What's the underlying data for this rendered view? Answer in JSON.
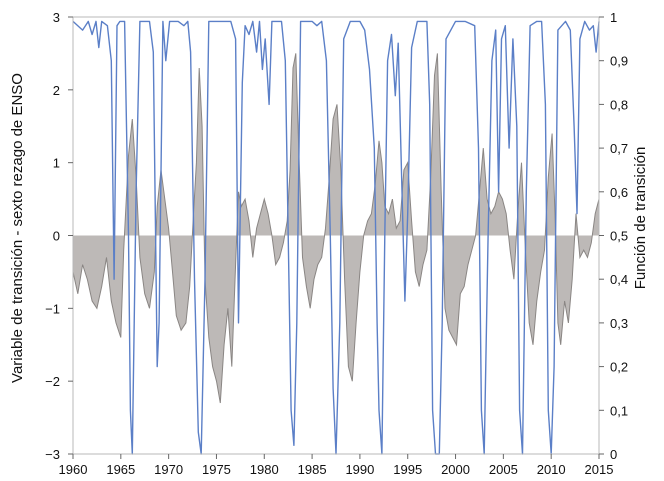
{
  "chart_data": {
    "type": "area",
    "title": "",
    "xlabel": "",
    "ylabel_left": "Variable de transición - sexto rezago de ENSO",
    "ylabel_right": "Función de transición",
    "xlim": [
      1960,
      2015
    ],
    "ylim_left": [
      -3,
      3
    ],
    "ylim_right": [
      0,
      1
    ],
    "grid": false,
    "legend": "none",
    "x_ticks": [
      "1960",
      "1965",
      "1970",
      "1975",
      "1980",
      "1985",
      "1990",
      "1995",
      "2000",
      "2005",
      "2010",
      "2015"
    ],
    "y_left_ticks": [
      "3",
      "2",
      "1",
      "0",
      "−1",
      "−2",
      "−3"
    ],
    "y_right_ticks": [
      "1",
      "0,9",
      "0,8",
      "0,7",
      "0,6",
      "0,5",
      "0,4",
      "0,3",
      "0,2",
      "0,1",
      "0"
    ],
    "series": [
      {
        "axis": "left",
        "style": "filled-area",
        "color": "#bdb9b7",
        "line_color": "#8a8684",
        "points": [
          [
            1960.0,
            -0.5
          ],
          [
            1960.5,
            -0.8
          ],
          [
            1961.0,
            -0.4
          ],
          [
            1961.5,
            -0.6
          ],
          [
            1962.0,
            -0.9
          ],
          [
            1962.5,
            -1.0
          ],
          [
            1963.0,
            -0.7
          ],
          [
            1963.5,
            -0.3
          ],
          [
            1964.0,
            -0.9
          ],
          [
            1964.5,
            -1.2
          ],
          [
            1965.0,
            -1.4
          ],
          [
            1965.3,
            -0.2
          ],
          [
            1965.8,
            1.1
          ],
          [
            1966.2,
            1.6
          ],
          [
            1966.6,
            0.8
          ],
          [
            1967.0,
            -0.3
          ],
          [
            1967.5,
            -0.8
          ],
          [
            1968.0,
            -1.0
          ],
          [
            1968.5,
            -0.5
          ],
          [
            1968.8,
            0.4
          ],
          [
            1969.2,
            0.9
          ],
          [
            1969.6,
            0.5
          ],
          [
            1970.0,
            0.1
          ],
          [
            1970.4,
            -0.5
          ],
          [
            1970.8,
            -1.1
          ],
          [
            1971.3,
            -1.3
          ],
          [
            1971.8,
            -1.2
          ],
          [
            1972.2,
            -0.7
          ],
          [
            1972.6,
            0.3
          ],
          [
            1972.9,
            1.0
          ],
          [
            1973.2,
            2.3
          ],
          [
            1973.5,
            1.5
          ],
          [
            1973.8,
            -0.6
          ],
          [
            1974.2,
            -1.4
          ],
          [
            1974.6,
            -1.8
          ],
          [
            1975.0,
            -2.0
          ],
          [
            1975.4,
            -2.3
          ],
          [
            1975.8,
            -1.5
          ],
          [
            1976.2,
            -1.0
          ],
          [
            1976.6,
            -1.8
          ],
          [
            1977.0,
            -0.4
          ],
          [
            1977.3,
            0.6
          ],
          [
            1977.6,
            0.4
          ],
          [
            1978.0,
            0.5
          ],
          [
            1978.4,
            0.2
          ],
          [
            1978.8,
            -0.3
          ],
          [
            1979.2,
            0.1
          ],
          [
            1979.6,
            0.3
          ],
          [
            1980.0,
            0.5
          ],
          [
            1980.4,
            0.3
          ],
          [
            1980.8,
            0.0
          ],
          [
            1981.2,
            -0.4
          ],
          [
            1981.6,
            -0.3
          ],
          [
            1982.0,
            -0.1
          ],
          [
            1982.4,
            0.2
          ],
          [
            1982.7,
            0.9
          ],
          [
            1983.0,
            2.3
          ],
          [
            1983.3,
            2.5
          ],
          [
            1983.6,
            1.2
          ],
          [
            1984.0,
            -0.3
          ],
          [
            1984.4,
            -0.7
          ],
          [
            1984.8,
            -1.0
          ],
          [
            1985.2,
            -0.6
          ],
          [
            1985.6,
            -0.4
          ],
          [
            1986.0,
            -0.3
          ],
          [
            1986.4,
            0.1
          ],
          [
            1986.8,
            0.8
          ],
          [
            1987.2,
            1.6
          ],
          [
            1987.6,
            1.8
          ],
          [
            1988.0,
            0.9
          ],
          [
            1988.4,
            -0.6
          ],
          [
            1988.8,
            -1.8
          ],
          [
            1989.2,
            -2.0
          ],
          [
            1989.6,
            -1.2
          ],
          [
            1990.0,
            -0.5
          ],
          [
            1990.4,
            0.0
          ],
          [
            1990.8,
            0.2
          ],
          [
            1991.2,
            0.3
          ],
          [
            1991.6,
            0.7
          ],
          [
            1992.0,
            1.3
          ],
          [
            1992.3,
            1.0
          ],
          [
            1992.6,
            0.4
          ],
          [
            1993.0,
            0.3
          ],
          [
            1993.4,
            0.5
          ],
          [
            1993.8,
            0.1
          ],
          [
            1994.2,
            0.2
          ],
          [
            1994.6,
            0.9
          ],
          [
            1995.0,
            1.0
          ],
          [
            1995.4,
            0.2
          ],
          [
            1995.8,
            -0.5
          ],
          [
            1996.2,
            -0.7
          ],
          [
            1996.6,
            -0.4
          ],
          [
            1997.0,
            -0.2
          ],
          [
            1997.4,
            0.8
          ],
          [
            1997.8,
            2.2
          ],
          [
            1998.1,
            2.5
          ],
          [
            1998.5,
            0.6
          ],
          [
            1998.9,
            -1.0
          ],
          [
            1999.3,
            -1.3
          ],
          [
            1999.7,
            -1.4
          ],
          [
            2000.1,
            -1.5
          ],
          [
            2000.5,
            -0.8
          ],
          [
            2000.9,
            -0.7
          ],
          [
            2001.3,
            -0.4
          ],
          [
            2001.7,
            -0.2
          ],
          [
            2002.1,
            0.0
          ],
          [
            2002.5,
            0.6
          ],
          [
            2002.9,
            1.2
          ],
          [
            2003.3,
            0.5
          ],
          [
            2003.7,
            0.3
          ],
          [
            2004.1,
            0.4
          ],
          [
            2004.5,
            0.6
          ],
          [
            2004.9,
            0.5
          ],
          [
            2005.3,
            0.3
          ],
          [
            2005.7,
            -0.2
          ],
          [
            2006.1,
            -0.6
          ],
          [
            2006.5,
            0.3
          ],
          [
            2006.9,
            1.0
          ],
          [
            2007.3,
            -0.2
          ],
          [
            2007.7,
            -1.2
          ],
          [
            2008.1,
            -1.5
          ],
          [
            2008.5,
            -0.9
          ],
          [
            2008.9,
            -0.5
          ],
          [
            2009.3,
            -0.2
          ],
          [
            2009.7,
            0.8
          ],
          [
            2010.1,
            1.4
          ],
          [
            2010.4,
            0.3
          ],
          [
            2010.7,
            -1.2
          ],
          [
            2011.0,
            -1.5
          ],
          [
            2011.4,
            -0.9
          ],
          [
            2011.8,
            -1.2
          ],
          [
            2012.2,
            -0.6
          ],
          [
            2012.6,
            0.3
          ],
          [
            2013.0,
            -0.3
          ],
          [
            2013.4,
            -0.2
          ],
          [
            2013.8,
            -0.3
          ],
          [
            2014.2,
            -0.1
          ],
          [
            2014.6,
            0.3
          ],
          [
            2015.0,
            0.5
          ]
        ]
      },
      {
        "axis": "right",
        "style": "line",
        "color": "#5b7fc7",
        "points": [
          [
            1960.0,
            0.99
          ],
          [
            1961.0,
            0.97
          ],
          [
            1961.6,
            0.99
          ],
          [
            1962.0,
            0.96
          ],
          [
            1962.4,
            0.99
          ],
          [
            1962.7,
            0.93
          ],
          [
            1963.0,
            0.99
          ],
          [
            1963.6,
            0.98
          ],
          [
            1964.0,
            0.9
          ],
          [
            1964.3,
            0.4
          ],
          [
            1964.6,
            0.98
          ],
          [
            1964.9,
            0.99
          ],
          [
            1965.4,
            0.99
          ],
          [
            1965.8,
            0.5
          ],
          [
            1966.0,
            0.1
          ],
          [
            1966.2,
            0.0
          ],
          [
            1966.6,
            0.6
          ],
          [
            1967.0,
            0.99
          ],
          [
            1968.0,
            0.99
          ],
          [
            1968.4,
            0.92
          ],
          [
            1968.8,
            0.2
          ],
          [
            1969.0,
            0.3
          ],
          [
            1969.4,
            0.99
          ],
          [
            1969.7,
            0.9
          ],
          [
            1970.1,
            0.99
          ],
          [
            1971.0,
            0.99
          ],
          [
            1971.6,
            0.98
          ],
          [
            1972.0,
            0.99
          ],
          [
            1972.3,
            0.92
          ],
          [
            1972.7,
            0.4
          ],
          [
            1973.1,
            0.05
          ],
          [
            1973.4,
            0.0
          ],
          [
            1973.8,
            0.4
          ],
          [
            1974.2,
            0.99
          ],
          [
            1975.5,
            0.99
          ],
          [
            1976.5,
            0.99
          ],
          [
            1977.0,
            0.95
          ],
          [
            1977.3,
            0.3
          ],
          [
            1977.7,
            0.85
          ],
          [
            1978.0,
            0.98
          ],
          [
            1978.4,
            0.96
          ],
          [
            1978.8,
            0.99
          ],
          [
            1979.2,
            0.92
          ],
          [
            1979.5,
            0.99
          ],
          [
            1979.8,
            0.88
          ],
          [
            1980.1,
            0.95
          ],
          [
            1980.5,
            0.8
          ],
          [
            1980.8,
            0.99
          ],
          [
            1981.2,
            0.99
          ],
          [
            1981.8,
            0.99
          ],
          [
            1982.2,
            0.9
          ],
          [
            1982.5,
            0.5
          ],
          [
            1982.8,
            0.1
          ],
          [
            1983.1,
            0.02
          ],
          [
            1983.4,
            0.3
          ],
          [
            1983.8,
            0.99
          ],
          [
            1984.5,
            0.99
          ],
          [
            1985.0,
            0.99
          ],
          [
            1985.5,
            0.98
          ],
          [
            1986.0,
            0.99
          ],
          [
            1986.5,
            0.9
          ],
          [
            1986.9,
            0.5
          ],
          [
            1987.2,
            0.15
          ],
          [
            1987.5,
            0.0
          ],
          [
            1987.9,
            0.3
          ],
          [
            1988.3,
            0.95
          ],
          [
            1989.0,
            0.99
          ],
          [
            1990.0,
            0.99
          ],
          [
            1990.5,
            0.97
          ],
          [
            1991.0,
            0.88
          ],
          [
            1991.5,
            0.7
          ],
          [
            1991.8,
            0.3
          ],
          [
            1992.0,
            0.1
          ],
          [
            1992.3,
            0.0
          ],
          [
            1992.6,
            0.5
          ],
          [
            1992.9,
            0.9
          ],
          [
            1993.3,
            0.96
          ],
          [
            1993.7,
            0.82
          ],
          [
            1994.0,
            0.94
          ],
          [
            1994.4,
            0.6
          ],
          [
            1994.7,
            0.35
          ],
          [
            1995.0,
            0.55
          ],
          [
            1995.4,
            0.93
          ],
          [
            1996.0,
            0.99
          ],
          [
            1997.0,
            0.99
          ],
          [
            1997.3,
            0.8
          ],
          [
            1997.6,
            0.1
          ],
          [
            1997.9,
            0.0
          ],
          [
            1998.3,
            0.0
          ],
          [
            1998.6,
            0.3
          ],
          [
            1999.0,
            0.95
          ],
          [
            2000.0,
            0.99
          ],
          [
            2001.0,
            0.99
          ],
          [
            2002.0,
            0.98
          ],
          [
            2002.4,
            0.7
          ],
          [
            2002.7,
            0.1
          ],
          [
            2003.0,
            0.0
          ],
          [
            2003.4,
            0.5
          ],
          [
            2003.8,
            0.9
          ],
          [
            2004.2,
            0.97
          ],
          [
            2004.5,
            0.6
          ],
          [
            2004.8,
            0.95
          ],
          [
            2005.2,
            0.98
          ],
          [
            2005.6,
            0.7
          ],
          [
            2006.0,
            0.95
          ],
          [
            2006.4,
            0.75
          ],
          [
            2006.7,
            0.1
          ],
          [
            2007.0,
            0.0
          ],
          [
            2007.4,
            0.6
          ],
          [
            2007.8,
            0.98
          ],
          [
            2008.5,
            0.99
          ],
          [
            2009.0,
            0.99
          ],
          [
            2009.4,
            0.8
          ],
          [
            2009.7,
            0.1
          ],
          [
            2010.0,
            0.0
          ],
          [
            2010.3,
            0.2
          ],
          [
            2010.7,
            0.97
          ],
          [
            2011.5,
            0.99
          ],
          [
            2012.0,
            0.97
          ],
          [
            2012.4,
            0.75
          ],
          [
            2012.7,
            0.55
          ],
          [
            2013.0,
            0.95
          ],
          [
            2013.5,
            0.99
          ],
          [
            2014.0,
            0.97
          ],
          [
            2014.4,
            0.98
          ],
          [
            2014.7,
            0.92
          ],
          [
            2015.0,
            0.99
          ]
        ]
      }
    ]
  }
}
